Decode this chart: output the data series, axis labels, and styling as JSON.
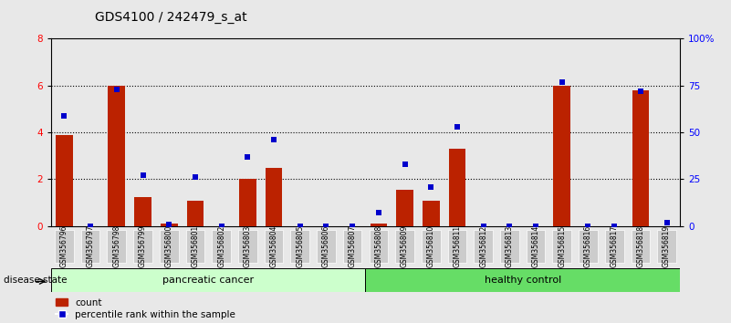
{
  "title": "GDS4100 / 242479_s_at",
  "samples": [
    "GSM356796",
    "GSM356797",
    "GSM356798",
    "GSM356799",
    "GSM356800",
    "GSM356801",
    "GSM356802",
    "GSM356803",
    "GSM356804",
    "GSM356805",
    "GSM356806",
    "GSM356807",
    "GSM356808",
    "GSM356809",
    "GSM356810",
    "GSM356811",
    "GSM356812",
    "GSM356813",
    "GSM356814",
    "GSM356815",
    "GSM356816",
    "GSM356817",
    "GSM356818",
    "GSM356819"
  ],
  "count_values": [
    3.9,
    0.0,
    6.0,
    1.25,
    0.1,
    1.1,
    0.0,
    2.0,
    2.5,
    0.0,
    0.0,
    0.0,
    0.1,
    1.55,
    1.1,
    3.3,
    0.0,
    0.0,
    0.0,
    6.0,
    0.0,
    0.0,
    5.8,
    0.0
  ],
  "percentile_values": [
    59,
    0,
    73,
    27,
    1,
    26,
    0,
    37,
    46,
    0,
    0,
    0,
    7,
    33,
    21,
    53,
    0,
    0,
    0,
    77,
    0,
    0,
    72,
    2
  ],
  "n_pancreatic": 12,
  "n_healthy": 12,
  "bar_color": "#bb2200",
  "percentile_color": "#0000cc",
  "pancreatic_bg": "#ccffcc",
  "healthy_bg": "#66dd66",
  "label_bg": "#cccccc",
  "ylim_left": [
    0,
    8
  ],
  "ylim_right": [
    0,
    100
  ],
  "yticks_left": [
    0,
    2,
    4,
    6,
    8
  ],
  "yticks_right": [
    0,
    25,
    50,
    75,
    100
  ],
  "ytick_labels_right": [
    "0",
    "25",
    "50",
    "75",
    "100%"
  ],
  "title_fontsize": 10,
  "background_color": "#e8e8e8"
}
